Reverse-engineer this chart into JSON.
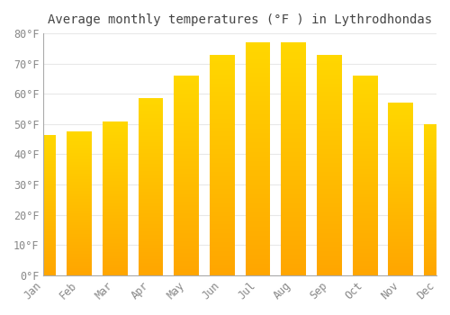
{
  "title": "Average monthly temperatures (°F ) in Lythrodhondas",
  "months": [
    "Jan",
    "Feb",
    "Mar",
    "Apr",
    "May",
    "Jun",
    "Jul",
    "Aug",
    "Sep",
    "Oct",
    "Nov",
    "Dec"
  ],
  "values": [
    46.5,
    47.5,
    51.0,
    58.5,
    66.0,
    73.0,
    77.0,
    77.0,
    73.0,
    66.0,
    57.0,
    50.0
  ],
  "bar_color_top": "#FFA500",
  "bar_color_bottom": "#FFD700",
  "background_color": "#FFFFFF",
  "grid_color": "#E8E8E8",
  "text_color": "#888888",
  "title_color": "#444444",
  "ylim": [
    0,
    80
  ],
  "yticks": [
    0,
    10,
    20,
    30,
    40,
    50,
    60,
    70,
    80
  ],
  "title_fontsize": 10,
  "tick_fontsize": 8.5
}
